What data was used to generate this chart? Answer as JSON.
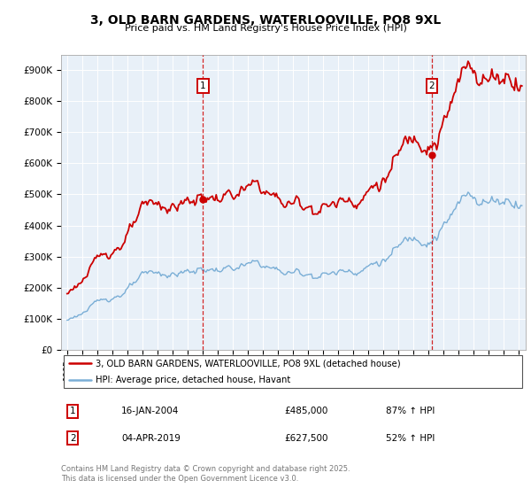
{
  "title": "3, OLD BARN GARDENS, WATERLOOVILLE, PO8 9XL",
  "subtitle": "Price paid vs. HM Land Registry's House Price Index (HPI)",
  "legend_line1": "3, OLD BARN GARDENS, WATERLOOVILLE, PO8 9XL (detached house)",
  "legend_line2": "HPI: Average price, detached house, Havant",
  "transaction1_date": "16-JAN-2004",
  "transaction1_price": "£485,000",
  "transaction1_hpi": "87% ↑ HPI",
  "transaction2_date": "04-APR-2019",
  "transaction2_price": "£627,500",
  "transaction2_hpi": "52% ↑ HPI",
  "footer": "Contains HM Land Registry data © Crown copyright and database right 2025.\nThis data is licensed under the Open Government Licence v3.0.",
  "red_color": "#cc0000",
  "blue_color": "#7aaed6",
  "chart_bg": "#e8f0f8",
  "marker1_x": 2004.04,
  "marker2_x": 2019.25,
  "sale1_price": 485000,
  "sale2_price": 627500,
  "ylim_max": 950000,
  "ylim_min": 0,
  "xmin": 1994.6,
  "xmax": 2025.5
}
